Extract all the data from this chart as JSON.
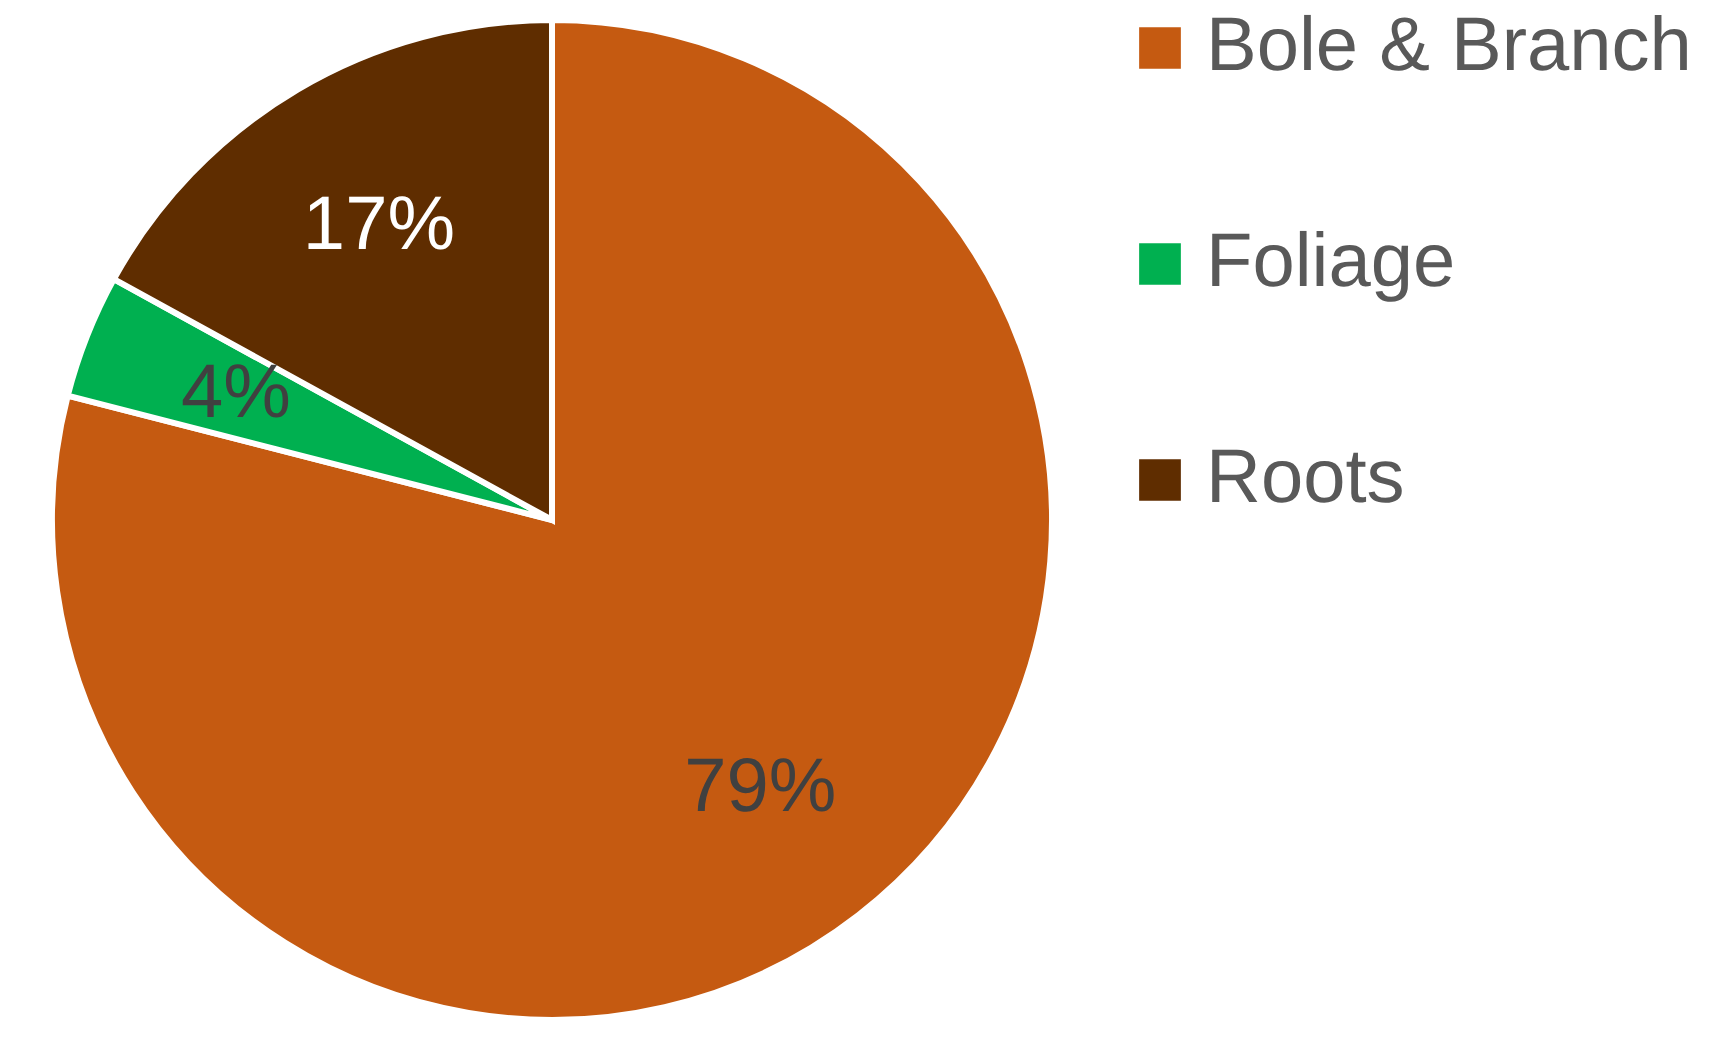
{
  "chart_data": {
    "type": "pie",
    "categories": [
      "Bole & Branch",
      "Foliage",
      "Roots"
    ],
    "values": [
      79,
      4,
      17
    ],
    "colors": [
      "#c55a11",
      "#00b050",
      "#5f2d00"
    ],
    "value_labels": [
      "79%",
      "4%",
      "17%"
    ],
    "legend": "right"
  }
}
